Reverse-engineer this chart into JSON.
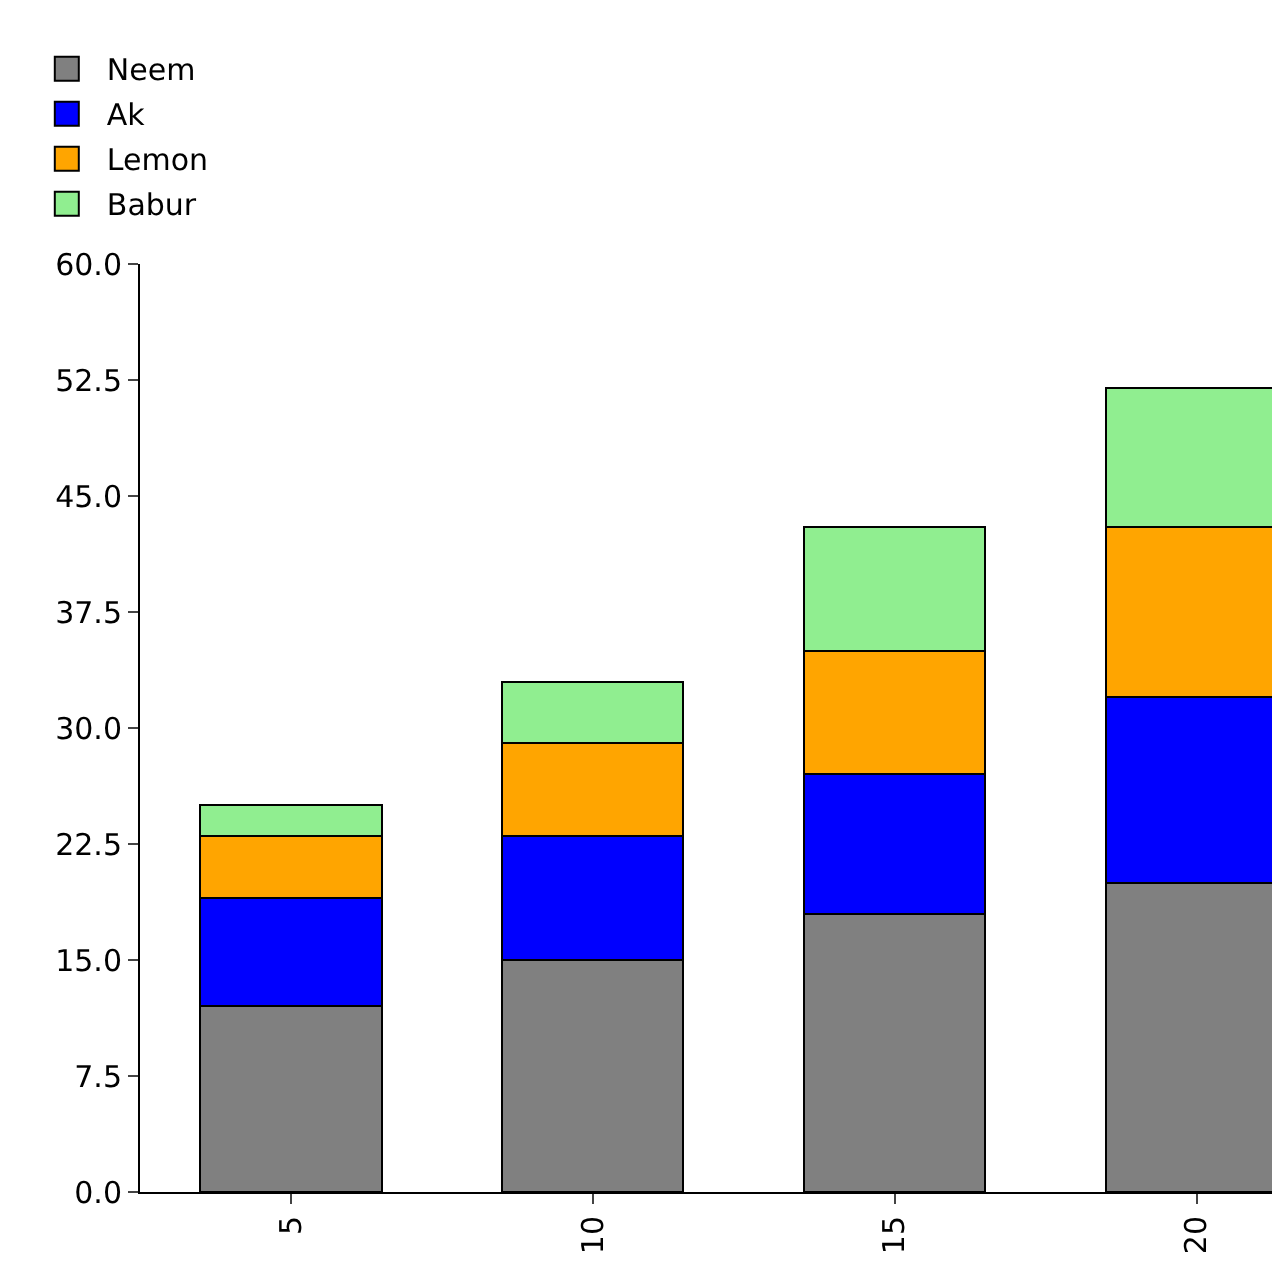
{
  "chart_data": {
    "type": "bar",
    "stacked": true,
    "categories": [
      "5",
      "10",
      "15",
      "20"
    ],
    "series": [
      {
        "name": "Neem",
        "color": "#808080",
        "values": [
          12,
          15,
          18,
          20
        ]
      },
      {
        "name": "Ak",
        "color": "#0000ff",
        "values": [
          7,
          8,
          9,
          12
        ]
      },
      {
        "name": "Lemon",
        "color": "#ffa500",
        "values": [
          4,
          6,
          8,
          11
        ]
      },
      {
        "name": "Babur",
        "color": "#90ee90",
        "values": [
          2,
          4,
          8,
          9
        ]
      }
    ],
    "ylim": [
      0,
      60
    ],
    "yticks": [
      {
        "value": 0,
        "label": "0.0"
      },
      {
        "value": 7.5,
        "label": "7.5"
      },
      {
        "value": 15,
        "label": "15.0"
      },
      {
        "value": 22.5,
        "label": "22.5"
      },
      {
        "value": 30,
        "label": "30.0"
      },
      {
        "value": 37.5,
        "label": "37.5"
      },
      {
        "value": 45,
        "label": "45.0"
      },
      {
        "value": 52.5,
        "label": "52.5"
      },
      {
        "value": 60,
        "label": "60.0"
      }
    ],
    "grid": false,
    "legend": "top left"
  }
}
